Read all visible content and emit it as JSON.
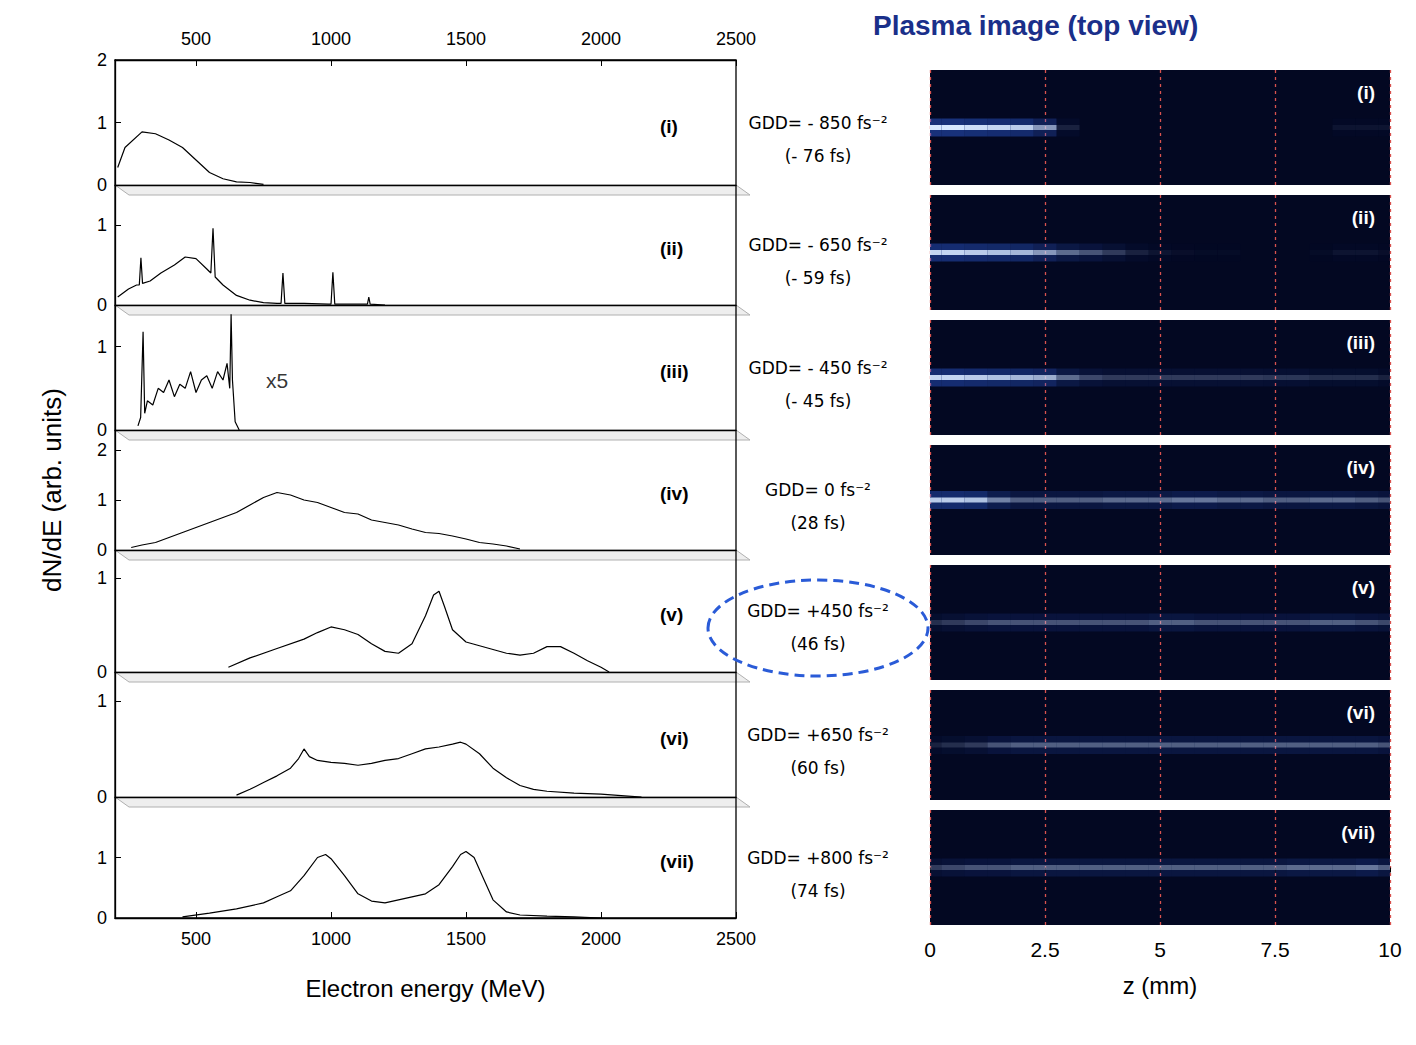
{
  "chart_data": [
    {
      "type": "line",
      "title": "(i)",
      "color": "#000000",
      "tick_labels": true,
      "annotations": [
        {
          "text": "GDD= - 850 fs⁻²"
        },
        {
          "text": "(- 76 fs)"
        }
      ],
      "xlim": [
        200,
        2500
      ],
      "xticks": [
        500,
        1000,
        1500,
        2000,
        2500
      ],
      "ylim": [
        0,
        2
      ],
      "yticks": [
        0,
        1,
        2
      ],
      "x": [
        210,
        237,
        300,
        350,
        400,
        450,
        500,
        550,
        600,
        650,
        700,
        750
      ],
      "values": [
        0.28,
        0.6,
        0.85,
        0.82,
        0.72,
        0.6,
        0.4,
        0.2,
        0.1,
        0.05,
        0.04,
        0.01
      ]
    },
    {
      "type": "line",
      "title": "(ii)",
      "color": "#000000",
      "tick_labels": "y",
      "annotations": [
        {
          "text": "GDD= - 650 fs⁻²"
        },
        {
          "text": "(- 59 fs)"
        }
      ],
      "xlim": [
        200,
        2500
      ],
      "xticks": [
        500,
        1000,
        1500,
        2000,
        2500
      ],
      "ylim": [
        0,
        1.5
      ],
      "yticks": [
        0,
        1
      ],
      "x": [
        210,
        250,
        280,
        290,
        296,
        302,
        330,
        370,
        420,
        460,
        500,
        540,
        555,
        563,
        571,
        600,
        650,
        700,
        750,
        800,
        815,
        822,
        829,
        850,
        900,
        990,
        1000,
        1007,
        1014,
        1050,
        1100,
        1135,
        1140,
        1145,
        1200
      ],
      "values": [
        0.1,
        0.2,
        0.25,
        0.25,
        0.59,
        0.27,
        0.3,
        0.4,
        0.5,
        0.6,
        0.58,
        0.45,
        0.4,
        0.96,
        0.35,
        0.25,
        0.12,
        0.06,
        0.03,
        0.02,
        0.02,
        0.4,
        0.02,
        0.02,
        0.02,
        0.01,
        0.01,
        0.41,
        0.01,
        0.01,
        0.01,
        0.01,
        0.1,
        0.01,
        0.0
      ]
    },
    {
      "type": "line",
      "title": "(iii)",
      "color": "#000000",
      "tick_labels": "y",
      "annotations": [
        {
          "text": "GDD= - 450 fs⁻²"
        },
        {
          "text": "(- 45 fs)"
        },
        {
          "text": "x5",
          "x": 800,
          "y": 0.6
        }
      ],
      "xlim": [
        200,
        2500
      ],
      "xticks": [
        500,
        1000,
        1500,
        2000,
        2500
      ],
      "ylim": [
        0,
        1.5
      ],
      "yticks": [
        0,
        1
      ],
      "x": [
        285,
        295,
        304,
        310,
        320,
        340,
        360,
        380,
        400,
        420,
        440,
        460,
        480,
        500,
        520,
        540,
        560,
        580,
        600,
        615,
        625,
        630,
        635,
        645,
        660
      ],
      "values": [
        0.05,
        0.15,
        1.18,
        0.2,
        0.35,
        0.3,
        0.5,
        0.45,
        0.6,
        0.4,
        0.55,
        0.5,
        0.7,
        0.45,
        0.6,
        0.65,
        0.5,
        0.7,
        0.6,
        0.8,
        0.5,
        1.39,
        0.6,
        0.1,
        0.0
      ]
    },
    {
      "type": "line",
      "title": "(iv)",
      "color": "#000000",
      "tick_labels": "y",
      "ylabel": "dN/dE (arb. units)",
      "annotations": [
        {
          "text": "GDD= 0 fs⁻²"
        },
        {
          "text": "(28 fs)"
        }
      ],
      "xlim": [
        200,
        2500
      ],
      "xticks": [
        500,
        1000,
        1500,
        2000,
        2500
      ],
      "ylim": [
        0,
        2.4
      ],
      "yticks": [
        0,
        1,
        2
      ],
      "x": [
        260,
        300,
        350,
        400,
        450,
        500,
        550,
        600,
        650,
        700,
        750,
        800,
        850,
        900,
        950,
        1000,
        1050,
        1100,
        1150,
        1200,
        1250,
        1300,
        1350,
        1400,
        1450,
        1500,
        1550,
        1600,
        1650,
        1700
      ],
      "values": [
        0.05,
        0.1,
        0.15,
        0.25,
        0.35,
        0.45,
        0.55,
        0.65,
        0.75,
        0.9,
        1.05,
        1.15,
        1.1,
        1.0,
        0.95,
        0.85,
        0.75,
        0.72,
        0.6,
        0.55,
        0.5,
        0.42,
        0.35,
        0.33,
        0.28,
        0.22,
        0.15,
        0.12,
        0.08,
        0.02
      ]
    },
    {
      "type": "line",
      "title": "(v)",
      "color": "#000000",
      "tick_labels": "y",
      "annotations": [
        {
          "text": "GDD= +450 fs⁻²"
        },
        {
          "text": "(46 fs)"
        }
      ],
      "xlim": [
        200,
        2500
      ],
      "xticks": [
        500,
        1000,
        1500,
        2000,
        2500
      ],
      "ylim": [
        0,
        1.3
      ],
      "yticks": [
        0,
        1
      ],
      "x": [
        620,
        700,
        800,
        900,
        950,
        1000,
        1050,
        1100,
        1150,
        1200,
        1250,
        1300,
        1350,
        1380,
        1400,
        1420,
        1450,
        1500,
        1550,
        1600,
        1650,
        1700,
        1750,
        1800,
        1850,
        1900,
        1950,
        2000,
        2030
      ],
      "values": [
        0.05,
        0.15,
        0.25,
        0.35,
        0.42,
        0.48,
        0.45,
        0.4,
        0.3,
        0.22,
        0.2,
        0.3,
        0.6,
        0.82,
        0.86,
        0.7,
        0.45,
        0.32,
        0.28,
        0.24,
        0.2,
        0.18,
        0.2,
        0.27,
        0.27,
        0.2,
        0.12,
        0.05,
        0.0
      ]
    },
    {
      "type": "line",
      "title": "(vi)",
      "color": "#000000",
      "tick_labels": "y",
      "annotations": [
        {
          "text": "GDD= +650 fs⁻²"
        },
        {
          "text": "(60 fs)"
        }
      ],
      "xlim": [
        200,
        2500
      ],
      "xticks": [
        500,
        1000,
        1500,
        2000,
        2500
      ],
      "ylim": [
        0,
        1.3
      ],
      "yticks": [
        0,
        1
      ],
      "x": [
        650,
        700,
        750,
        800,
        850,
        880,
        900,
        920,
        950,
        1000,
        1050,
        1100,
        1150,
        1200,
        1250,
        1300,
        1350,
        1400,
        1450,
        1480,
        1500,
        1550,
        1600,
        1650,
        1700,
        1750,
        1800,
        1900,
        2000,
        2100,
        2150
      ],
      "values": [
        0.02,
        0.08,
        0.15,
        0.22,
        0.3,
        0.4,
        0.5,
        0.42,
        0.38,
        0.36,
        0.35,
        0.33,
        0.35,
        0.38,
        0.4,
        0.45,
        0.5,
        0.52,
        0.55,
        0.57,
        0.55,
        0.45,
        0.3,
        0.2,
        0.12,
        0.08,
        0.06,
        0.04,
        0.03,
        0.01,
        0.0
      ]
    },
    {
      "type": "line",
      "title": "(vii)",
      "color": "#000000",
      "tick_labels": true,
      "xlabel": "Electron energy (MeV)",
      "annotations": [
        {
          "text": "GDD= +800 fs⁻²"
        },
        {
          "text": "(74 fs)"
        }
      ],
      "xlim": [
        200,
        2500
      ],
      "xticks": [
        500,
        1000,
        1500,
        2000,
        2500
      ],
      "ylim": [
        0,
        2
      ],
      "yticks": [
        0,
        1
      ],
      "x": [
        450,
        550,
        650,
        750,
        800,
        850,
        900,
        950,
        980,
        1000,
        1050,
        1100,
        1150,
        1200,
        1250,
        1300,
        1350,
        1400,
        1450,
        1480,
        1500,
        1530,
        1560,
        1600,
        1650,
        1700,
        1800,
        1900,
        2000
      ],
      "values": [
        0.02,
        0.08,
        0.15,
        0.25,
        0.35,
        0.45,
        0.7,
        1.0,
        1.05,
        0.98,
        0.7,
        0.4,
        0.28,
        0.25,
        0.3,
        0.35,
        0.4,
        0.55,
        0.85,
        1.05,
        1.1,
        1.0,
        0.7,
        0.3,
        0.1,
        0.05,
        0.03,
        0.02,
        0.0
      ]
    },
    {
      "type": "heatmap",
      "title": "Plasma image (top view)",
      "xlabel": "z (mm)",
      "grid": true,
      "tick_labels": "x",
      "xlim": [
        0,
        10
      ],
      "xticks": [
        0,
        2.5,
        5,
        7.5,
        10
      ],
      "x": [
        0,
        0.5,
        1,
        1.5,
        2,
        2.5,
        3,
        3.5,
        4,
        4.5,
        5,
        5.5,
        6,
        6.5,
        7,
        7.5,
        8,
        8.5,
        9,
        9.5,
        10
      ],
      "series": [
        {
          "name": "(i)",
          "values": [
            1,
            1,
            0.95,
            0.9,
            0.85,
            0.6,
            0.1,
            0,
            0,
            0,
            0,
            0,
            0,
            0,
            0,
            0,
            0,
            0,
            0.05,
            0.05,
            0.05
          ]
        },
        {
          "name": "(ii)",
          "values": [
            0.9,
            0.9,
            0.85,
            0.8,
            0.75,
            0.6,
            0.4,
            0.3,
            0.2,
            0.1,
            0.05,
            0.03,
            0.02,
            0.02,
            0,
            0,
            0,
            0.02,
            0.05,
            0.05,
            0.03
          ]
        },
        {
          "name": "(iii)",
          "values": [
            0.9,
            0.9,
            0.85,
            0.8,
            0.75,
            0.7,
            0.4,
            0.25,
            0.2,
            0.2,
            0.2,
            0.2,
            0.2,
            0.2,
            0.2,
            0.18,
            0.18,
            0.15,
            0.15,
            0.15,
            0.1
          ]
        },
        {
          "name": "(iv)",
          "values": [
            0.85,
            0.85,
            0.8,
            0.5,
            0.35,
            0.35,
            0.35,
            0.35,
            0.4,
            0.4,
            0.4,
            0.45,
            0.45,
            0.4,
            0.4,
            0.35,
            0.35,
            0.4,
            0.4,
            0.35,
            0.3
          ]
        },
        {
          "name": "(v)",
          "values": [
            0.15,
            0.2,
            0.25,
            0.3,
            0.3,
            0.3,
            0.3,
            0.3,
            0.3,
            0.3,
            0.35,
            0.35,
            0.3,
            0.3,
            0.3,
            0.3,
            0.3,
            0.35,
            0.35,
            0.3,
            0.25
          ]
        },
        {
          "name": "(vi)",
          "values": [
            0.1,
            0.15,
            0.2,
            0.3,
            0.35,
            0.35,
            0.35,
            0.35,
            0.35,
            0.35,
            0.35,
            0.35,
            0.35,
            0.35,
            0.35,
            0.35,
            0.35,
            0.35,
            0.35,
            0.35,
            0.3
          ]
        },
        {
          "name": "(vii)",
          "values": [
            0.2,
            0.25,
            0.3,
            0.3,
            0.35,
            0.35,
            0.35,
            0.35,
            0.35,
            0.35,
            0.35,
            0.35,
            0.35,
            0.35,
            0.35,
            0.35,
            0.4,
            0.4,
            0.4,
            0.45,
            0.35
          ]
        }
      ]
    }
  ]
}
